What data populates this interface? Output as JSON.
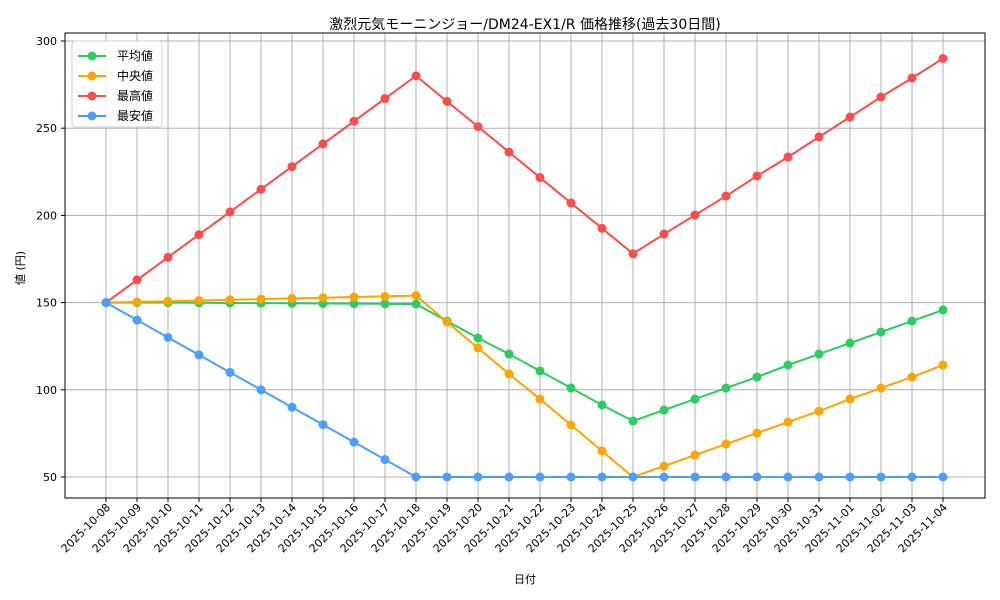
{
  "chart_data": {
    "type": "line",
    "title": "激烈元気モーニンジョー/DM24-EX1/R 価格推移(過去30日間)",
    "xlabel": "日付",
    "ylabel": "値 (円)",
    "ylim": [
      38,
      304
    ],
    "yticks": [
      50,
      100,
      150,
      200,
      250,
      300
    ],
    "grid": true,
    "legend_position": "upper left",
    "categories": [
      "2025-10-08",
      "2025-10-09",
      "2025-10-10",
      "2025-10-11",
      "2025-10-12",
      "2025-10-13",
      "2025-10-14",
      "2025-10-15",
      "2025-10-16",
      "2025-10-17",
      "2025-10-18",
      "2025-10-19",
      "2025-10-20",
      "2025-10-21",
      "2025-10-22",
      "2025-10-23",
      "2025-10-24",
      "2025-10-25",
      "2025-10-26",
      "2025-10-27",
      "2025-10-28",
      "2025-10-29",
      "2025-10-30",
      "2025-10-31",
      "2025-11-01",
      "2025-11-02",
      "2025-11-03",
      "2025-11-04"
    ],
    "series": [
      {
        "name": "平均値",
        "color": "#2ecc60",
        "values": [
          150,
          150,
          150,
          149.9,
          149.8,
          149.7,
          149.6,
          149.5,
          149.4,
          149.3,
          149.2,
          139.4,
          129.7,
          120.5,
          110.8,
          101.0,
          91.3,
          82.1,
          88.4,
          94.7,
          101.0,
          107.3,
          114.2,
          120.5,
          126.8,
          133.1,
          139.4,
          145.8
        ]
      },
      {
        "name": "中央値",
        "color": "#ffa500",
        "values": [
          150,
          150.4,
          150.8,
          151.2,
          151.6,
          152.0,
          152.4,
          152.8,
          153.2,
          153.6,
          154.0,
          138.9,
          124.0,
          109.1,
          94.7,
          79.8,
          64.9,
          50.0,
          56.3,
          62.6,
          68.9,
          75.2,
          81.5,
          87.8,
          94.7,
          101.0,
          107.3,
          114.2
        ]
      },
      {
        "name": "最高値",
        "color": "#ff4d4d",
        "values": [
          150,
          163,
          176,
          189,
          202,
          215,
          228,
          241,
          254,
          267,
          280,
          265.4,
          250.9,
          236.3,
          221.7,
          207.1,
          192.6,
          178.0,
          189.3,
          200.2,
          211.1,
          222.6,
          233.5,
          245.0,
          256.4,
          267.9,
          278.8,
          290.0
        ]
      },
      {
        "name": "最安値",
        "color": "#4d9fff",
        "values": [
          150,
          140,
          130,
          120,
          110,
          100,
          90,
          80,
          70,
          60,
          50,
          50,
          50,
          50,
          50,
          50,
          50,
          50,
          50,
          50,
          50,
          50,
          50,
          50,
          50,
          50,
          50,
          50
        ]
      }
    ]
  }
}
